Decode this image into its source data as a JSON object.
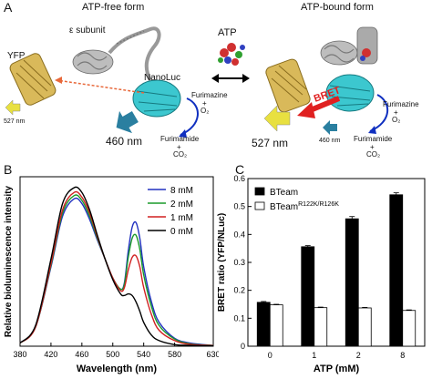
{
  "panel_a": {
    "letter": "A",
    "free_title": "ATP-free form",
    "bound_title": "ATP-bound form",
    "epsilon_label": "ε subunit",
    "yfp_label": "YFP",
    "nanoluc_label": "NanoLuc",
    "atp_label": "ATP",
    "furimazine_left": "Furimazine",
    "plus_o2_left": "+",
    "o2_left": "O₂",
    "furimamide_left": "Furimamide",
    "plus_co2_left": "+",
    "co2_left": "CO₂",
    "wl527_small": "527 nm",
    "wl460_big": "460 nm",
    "bret_label": "BRET",
    "furimazine_right": "Furimazine",
    "plus_o2_right": "+",
    "o2_right": "O₂",
    "furimamide_right": "Furimamide",
    "plus_co2_right": "+",
    "co2_right": "CO₂",
    "wl527_big": "527 nm",
    "wl460_small": "460 nm",
    "colors": {
      "yfp": "#c9a84c",
      "nanoluc": "#2fc0c8",
      "epsilon": "#9a9a9a",
      "bret": "#e02020",
      "arrow460": "#2a7fa0",
      "arrow527": "#e8e040",
      "substrate_arrow": "#1030c0"
    }
  },
  "chart_data": [
    {
      "panel": "B",
      "type": "line",
      "xlabel": "Wavelength (nm)",
      "ylabel": "Relative bioluminescence intensity",
      "xlim": [
        380,
        630
      ],
      "x_ticks": [
        "380",
        "420",
        "460",
        "500",
        "540",
        "580",
        "630"
      ],
      "legend_position": "top-right",
      "series": [
        {
          "name": "8 mM",
          "color": "#2030c0",
          "x": [
            380,
            400,
            420,
            435,
            450,
            460,
            470,
            480,
            490,
            500,
            510,
            515,
            520,
            525,
            530,
            535,
            540,
            550,
            560,
            580,
            600,
            630
          ],
          "y": [
            0.02,
            0.12,
            0.5,
            0.82,
            0.93,
            0.9,
            0.8,
            0.67,
            0.55,
            0.43,
            0.36,
            0.4,
            0.6,
            0.75,
            0.78,
            0.68,
            0.5,
            0.28,
            0.15,
            0.05,
            0.02,
            0.005
          ]
        },
        {
          "name": "2 mM",
          "color": "#1a9a2a",
          "x": [
            380,
            400,
            420,
            435,
            450,
            460,
            470,
            480,
            490,
            500,
            510,
            515,
            520,
            525,
            530,
            535,
            540,
            550,
            560,
            580,
            600,
            630
          ],
          "y": [
            0.02,
            0.12,
            0.51,
            0.84,
            0.95,
            0.92,
            0.82,
            0.68,
            0.55,
            0.43,
            0.36,
            0.39,
            0.56,
            0.68,
            0.7,
            0.61,
            0.45,
            0.25,
            0.13,
            0.045,
            0.015,
            0.005
          ]
        },
        {
          "name": "1 mM",
          "color": "#d02020",
          "x": [
            380,
            400,
            420,
            435,
            450,
            460,
            470,
            480,
            490,
            500,
            510,
            515,
            520,
            525,
            530,
            535,
            540,
            550,
            560,
            580,
            600,
            630
          ],
          "y": [
            0.02,
            0.12,
            0.52,
            0.86,
            0.97,
            0.94,
            0.84,
            0.69,
            0.55,
            0.43,
            0.35,
            0.37,
            0.48,
            0.56,
            0.57,
            0.5,
            0.37,
            0.2,
            0.1,
            0.035,
            0.012,
            0.004
          ]
        },
        {
          "name": "0 mM",
          "color": "#000000",
          "x": [
            380,
            400,
            420,
            435,
            450,
            460,
            470,
            480,
            490,
            500,
            510,
            515,
            520,
            525,
            530,
            535,
            540,
            550,
            560,
            580,
            600,
            630
          ],
          "y": [
            0.02,
            0.13,
            0.55,
            0.9,
            1.0,
            0.97,
            0.86,
            0.7,
            0.55,
            0.42,
            0.33,
            0.32,
            0.33,
            0.32,
            0.28,
            0.22,
            0.15,
            0.07,
            0.035,
            0.01,
            0.005,
            0.002
          ]
        }
      ]
    },
    {
      "panel": "C",
      "type": "bar",
      "xlabel": "ATP (mM)",
      "ylabel": "BRET ratio (YFP/NLuc)",
      "ylim": [
        0,
        0.6
      ],
      "y_ticks": [
        "0",
        "0.1",
        "0.2",
        "0.3",
        "0.4",
        "0.5",
        "0.6"
      ],
      "categories": [
        "0",
        "1",
        "2",
        "8"
      ],
      "legend_position": "top-left",
      "series": [
        {
          "name": "BTeam",
          "name_sup": "",
          "color": "#000000",
          "values": [
            0.157,
            0.356,
            0.456,
            0.542
          ],
          "errors": [
            0.003,
            0.004,
            0.008,
            0.007
          ]
        },
        {
          "name": "BTeam",
          "name_sup": "R122K/R126K",
          "color": "#ffffff",
          "values": [
            0.148,
            0.138,
            0.137,
            0.128
          ],
          "errors": [
            0.002,
            0.002,
            0.002,
            0.002
          ]
        }
      ]
    }
  ],
  "panel_b_letter": "B",
  "panel_c_letter": "C"
}
